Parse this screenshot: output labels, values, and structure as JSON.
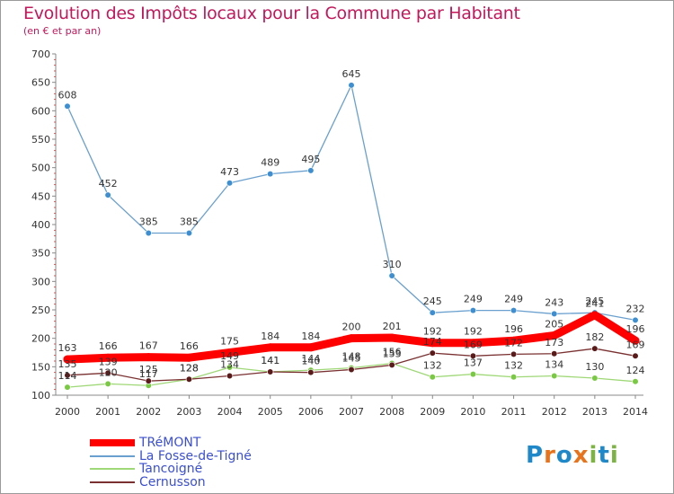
{
  "title": "Evolution des Impôts locaux pour la Commune par Habitant",
  "subtitle": "(en € et par an)",
  "logo": {
    "text": "Proxiti",
    "letters": [
      "P",
      "r",
      "o",
      "x",
      "i",
      "t",
      "i"
    ],
    "colors": [
      "#1e88c8",
      "#e8731a",
      "#1e88c8",
      "#e8731a",
      "#7cb342",
      "#1e88c8",
      "#7cb342"
    ]
  },
  "chart_data": {
    "type": "line",
    "title": "Evolution des Impôts locaux pour la Commune par Habitant",
    "subtitle": "(en € et par an)",
    "xlabel": "",
    "ylabel": "",
    "ylim": [
      100,
      700
    ],
    "yticks": [
      100,
      150,
      200,
      250,
      300,
      350,
      400,
      450,
      500,
      550,
      600,
      650,
      700
    ],
    "grid": false,
    "legend": "bottom-left",
    "x": [
      "2000",
      "2001",
      "2002",
      "2003",
      "2004",
      "2005",
      "2006",
      "2007",
      "2008",
      "2009",
      "2010",
      "2011",
      "2012",
      "2013",
      "2014"
    ],
    "series": [
      {
        "name": "La Fosse-de-Tigné",
        "color": "#6aa0cf",
        "marker": "#3d8fd1",
        "values": [
          608,
          452,
          385,
          385,
          473,
          489,
          495,
          645,
          310,
          245,
          249,
          249,
          243,
          245,
          232
        ],
        "labels": [
          "608",
          "452",
          "385",
          "385",
          "473",
          "489",
          "495",
          "645",
          "310",
          "245",
          "249",
          "249",
          "243",
          "245",
          "232"
        ]
      },
      {
        "name": "Tancoigné",
        "color": "#9fd877",
        "marker": "#7ac943",
        "values": [
          114,
          120,
          117,
          128,
          149,
          141,
          144,
          148,
          156,
          132,
          137,
          132,
          134,
          130,
          124
        ],
        "labels": [
          "114",
          "120",
          "117",
          "128",
          "149",
          "141",
          "144",
          "148",
          "156",
          "132",
          "137",
          "132",
          "134",
          "130",
          "124"
        ]
      },
      {
        "name": "Cernusson",
        "color": "#7a3030",
        "marker": "#5a1a1a",
        "values": [
          135,
          139,
          125,
          128,
          134,
          141,
          140,
          145,
          153,
          174,
          169,
          172,
          173,
          182,
          169
        ],
        "labels": [
          "135",
          "139",
          "125",
          "128",
          "134",
          "141",
          "140",
          "145",
          "153",
          "174",
          "169",
          "172",
          "173",
          "182",
          "169"
        ]
      },
      {
        "name": "TRéMONT",
        "color": "#ff0000",
        "marker": "#ff0000",
        "values": [
          163,
          166,
          167,
          166,
          175,
          184,
          184,
          200,
          201,
          192,
          192,
          196,
          205,
          241,
          196
        ],
        "labels": [
          "163",
          "166",
          "167",
          "166",
          "175",
          "184",
          "184",
          "200",
          "201",
          "192",
          "192",
          "196",
          "205",
          "241",
          "196"
        ]
      }
    ]
  },
  "legend": [
    {
      "name": "TRéMONT",
      "color": "#ff0000"
    },
    {
      "name": "La Fosse-de-Tigné",
      "color": "#6aa0cf"
    },
    {
      "name": "Tancoigné",
      "color": "#9fd877"
    },
    {
      "name": "Cernusson",
      "color": "#7a3030"
    }
  ]
}
